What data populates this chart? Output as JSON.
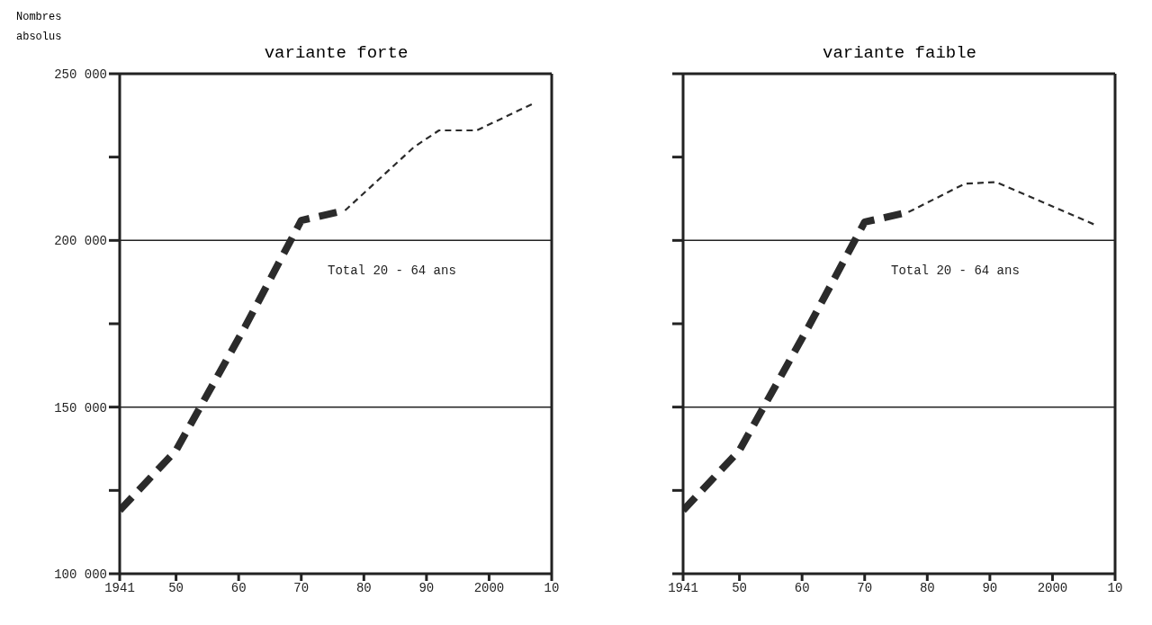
{
  "chart_data": [
    {
      "type": "line",
      "title": "variante forte",
      "ylabel": "Nombres absolus",
      "annotations": [
        "Total 20 - 64 ans"
      ],
      "line_style": "dashed",
      "marker": "none",
      "grid": "y",
      "xlim": [
        1941,
        2010
      ],
      "xticks": [
        {
          "value": 1941,
          "label": "1941"
        },
        {
          "value": 1950,
          "label": "50"
        },
        {
          "value": 1960,
          "label": "60"
        },
        {
          "value": 1970,
          "label": "70"
        },
        {
          "value": 1980,
          "label": "80"
        },
        {
          "value": 1990,
          "label": "90"
        },
        {
          "value": 2000,
          "label": "2000"
        },
        {
          "value": 2010,
          "label": "10"
        }
      ],
      "ylim": [
        100000,
        250000
      ],
      "yticks": [
        {
          "value": 100000,
          "label": "100 000"
        },
        {
          "value": 125000,
          "label": null
        },
        {
          "value": 150000,
          "label": "150 000"
        },
        {
          "value": 175000,
          "label": null
        },
        {
          "value": 200000,
          "label": "200 000"
        },
        {
          "value": 225000,
          "label": null
        },
        {
          "value": 250000,
          "label": "250 000"
        }
      ],
      "series": [
        {
          "color": "#2b2b2b",
          "x": [
            1941,
            1950,
            1961,
            1970,
            1977
          ],
          "values": [
            119000,
            137000,
            174000,
            206000,
            209000
          ]
        },
        {
          "color": "#2b2b2b",
          "x": [
            1977,
            1988,
            1992,
            1998,
            2007
          ],
          "values": [
            209000,
            228000,
            233000,
            233000,
            241000
          ]
        }
      ]
    },
    {
      "type": "line",
      "title": "variante faible",
      "annotations": [
        "Total 20 - 64 ans"
      ],
      "line_style": "dashed",
      "marker": "none",
      "grid": "y",
      "tick_labels": "x",
      "xlim": [
        1941,
        2010
      ],
      "xticks": [
        {
          "value": 1941,
          "label": "1941"
        },
        {
          "value": 1950,
          "label": "50"
        },
        {
          "value": 1960,
          "label": "60"
        },
        {
          "value": 1970,
          "label": "70"
        },
        {
          "value": 1980,
          "label": "80"
        },
        {
          "value": 1990,
          "label": "90"
        },
        {
          "value": 2000,
          "label": "2000"
        },
        {
          "value": 2010,
          "label": "10"
        }
      ],
      "ylim": [
        100000,
        250000
      ],
      "yticks": [
        {
          "value": 100000,
          "label": null
        },
        {
          "value": 125000,
          "label": null
        },
        {
          "value": 150000,
          "label": null
        },
        {
          "value": 175000,
          "label": null
        },
        {
          "value": 200000,
          "label": null
        },
        {
          "value": 225000,
          "label": null
        },
        {
          "value": 250000,
          "label": null
        }
      ],
      "series": [
        {
          "color": "#2b2b2b",
          "x": [
            1941,
            1950,
            1961,
            1970,
            1977
          ],
          "values": [
            119000,
            137000,
            174000,
            205500,
            208500
          ]
        },
        {
          "color": "#2b2b2b",
          "x": [
            1977,
            1986,
            1991,
            2007
          ],
          "values": [
            208500,
            217000,
            217500,
            204500
          ]
        }
      ]
    }
  ]
}
